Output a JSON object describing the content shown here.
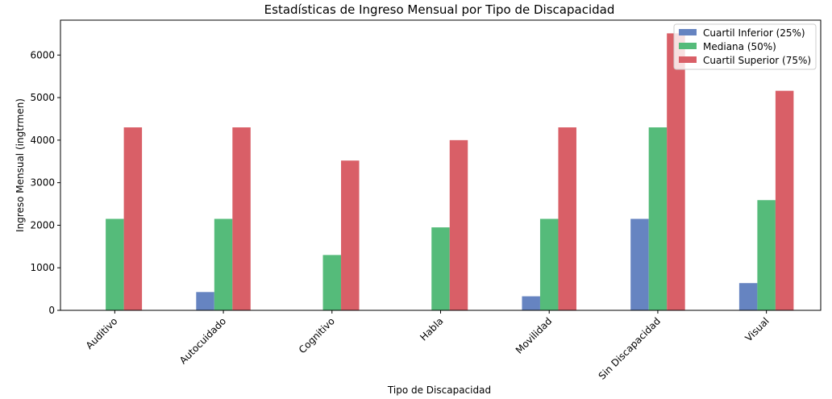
{
  "chart_data": {
    "type": "bar",
    "title": "Estadísticas de Ingreso Mensual por Tipo de Discapacidad",
    "xlabel": "Tipo de Discapacidad",
    "ylabel": "Ingreso Mensual (ingtrmen)",
    "categories": [
      "Auditivo",
      "Autocuidado",
      "Cognitivo",
      "Habla",
      "Movilidad",
      "Sin Discapacidad",
      "Visual"
    ],
    "series": [
      {
        "name": "Cuartil Inferior (25%)",
        "color": "#6684c1",
        "values": [
          0,
          430,
          0,
          0,
          330,
          2150,
          640
        ]
      },
      {
        "name": "Mediana (50%)",
        "color": "#55bb7a",
        "values": [
          2150,
          2150,
          1300,
          1950,
          2150,
          4300,
          2590
        ]
      },
      {
        "name": "Cuartil Superior (75%)",
        "color": "#d95f67",
        "values": [
          4300,
          4300,
          3520,
          4000,
          4300,
          6510,
          5160
        ]
      }
    ],
    "yticks": [
      0,
      1000,
      2000,
      3000,
      4000,
      5000,
      6000
    ],
    "ylim": [
      0,
      6820
    ],
    "grid": false,
    "legend_position": "top-right"
  }
}
